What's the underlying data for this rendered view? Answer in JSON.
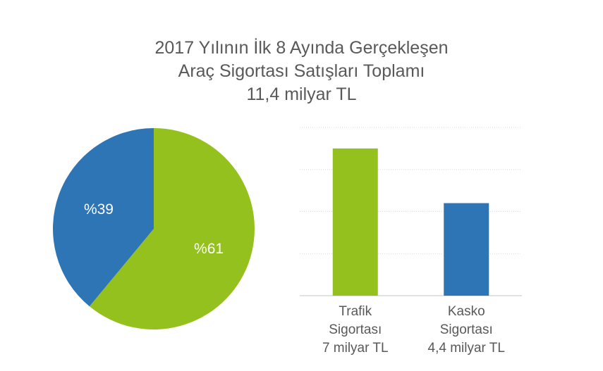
{
  "title": {
    "line1": "2017 Yılının İlk 8 Ayında Gerçekleşen",
    "line2": "Araç Sigortası Satışları Toplamı",
    "line3": "11,4 milyar TL"
  },
  "colors": {
    "green": "#95c11f",
    "blue": "#2e75b6",
    "grid": "#d9d9d9",
    "text": "#595959"
  },
  "chart_data": [
    {
      "type": "pie",
      "slices": [
        {
          "label": "%61",
          "value": 61,
          "color": "#95c11f"
        },
        {
          "label": "%39",
          "value": 39,
          "color": "#2e75b6"
        }
      ]
    },
    {
      "type": "bar",
      "categories": [
        [
          "Trafik",
          "Sigortası",
          "7 milyar TL"
        ],
        [
          "Kasko",
          "Sigortası",
          "4,4 milyar TL"
        ]
      ],
      "values": [
        7,
        4.4
      ],
      "colors": [
        "#95c11f",
        "#2e75b6"
      ],
      "ylim": [
        0,
        8
      ],
      "grid": true
    }
  ]
}
